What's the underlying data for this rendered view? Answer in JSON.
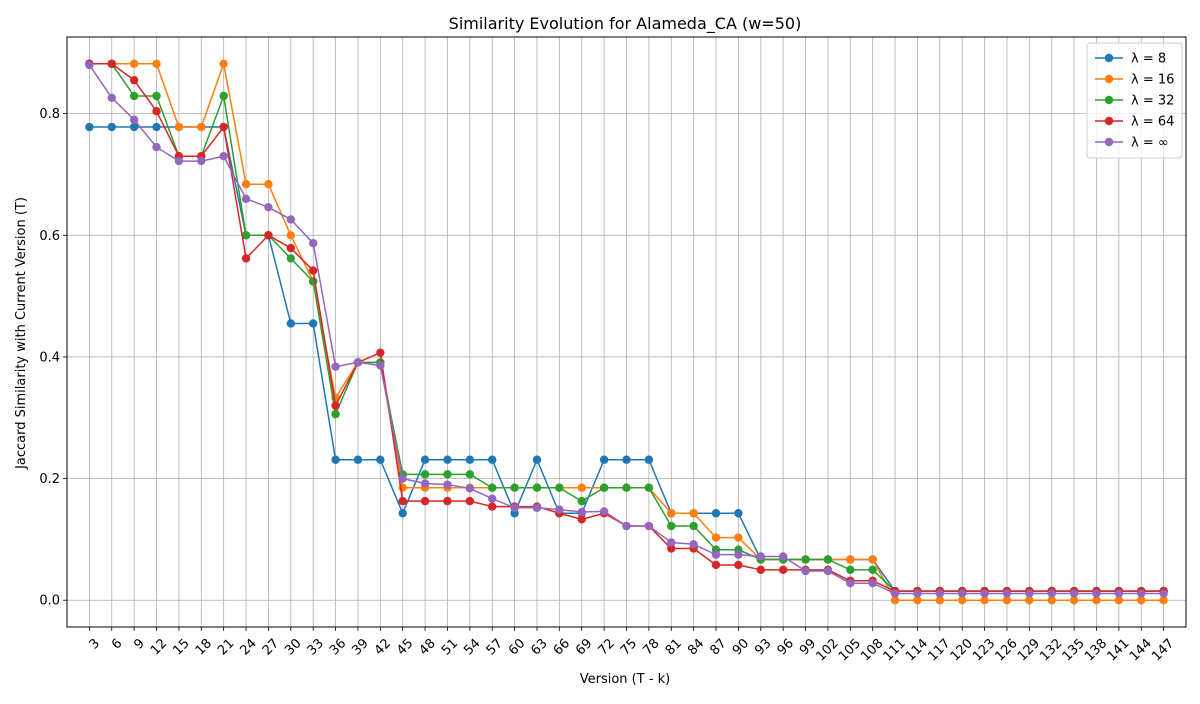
{
  "chart_data": {
    "type": "line",
    "title": "Similarity Evolution for Alameda_CA (w=50)",
    "xlabel": "Version (T - k)",
    "ylabel": "Jaccard Similarity with Current Version (T)",
    "grid": true,
    "legend_position": "top-right",
    "xlim": [
      0,
      150
    ],
    "ylim": [
      -0.044,
      0.926
    ],
    "x": [
      3,
      6,
      9,
      12,
      15,
      18,
      21,
      24,
      27,
      30,
      33,
      36,
      39,
      42,
      45,
      48,
      51,
      54,
      57,
      60,
      63,
      66,
      69,
      72,
      75,
      78,
      81,
      84,
      87,
      90,
      93,
      96,
      99,
      102,
      105,
      108,
      111,
      114,
      117,
      120,
      123,
      126,
      129,
      132,
      135,
      138,
      141,
      144,
      147
    ],
    "x_ticks": [
      3,
      6,
      9,
      12,
      15,
      18,
      21,
      24,
      27,
      30,
      33,
      36,
      39,
      42,
      45,
      48,
      51,
      54,
      57,
      60,
      63,
      66,
      69,
      72,
      75,
      78,
      81,
      84,
      87,
      90,
      93,
      96,
      99,
      102,
      105,
      108,
      111,
      114,
      117,
      120,
      123,
      126,
      129,
      132,
      135,
      138,
      141,
      144,
      147
    ],
    "y_ticks": [
      0.0,
      0.2,
      0.4,
      0.6,
      0.8
    ],
    "y_tick_labels": [
      "0.0",
      "0.2",
      "0.4",
      "0.6",
      "0.8"
    ],
    "series": [
      {
        "name": "λ = 8",
        "color": "#1f77b4",
        "values": [
          0.778,
          0.778,
          0.778,
          0.778,
          0.778,
          0.778,
          0.778,
          0.6,
          0.6,
          0.455,
          0.455,
          0.231,
          0.231,
          0.231,
          0.143,
          0.231,
          0.231,
          0.231,
          0.231,
          0.143,
          0.231,
          0.143,
          0.143,
          0.231,
          0.231,
          0.231,
          0.143,
          0.143,
          0.143,
          0.143,
          0.067,
          0.067,
          0.067,
          0.067,
          0.067,
          0.067,
          0.015,
          0.015,
          0.015,
          0.015,
          0.015,
          0.015,
          0.015,
          0.015,
          0.015,
          0.015,
          0.015,
          0.015,
          0.015
        ]
      },
      {
        "name": "λ = 16",
        "color": "#ff7f0e",
        "values": [
          0.882,
          0.882,
          0.882,
          0.882,
          0.778,
          0.778,
          0.882,
          0.684,
          0.684,
          0.6,
          0.524,
          0.333,
          0.391,
          0.391,
          0.185,
          0.185,
          0.185,
          0.185,
          0.185,
          0.185,
          0.185,
          0.185,
          0.185,
          0.185,
          0.185,
          0.185,
          0.143,
          0.143,
          0.103,
          0.103,
          0.067,
          0.067,
          0.067,
          0.067,
          0.067,
          0.067,
          0.0,
          0.0,
          0.0,
          0.0,
          0.0,
          0.0,
          0.0,
          0.0,
          0.0,
          0.0,
          0.0,
          0.0,
          0.0
        ]
      },
      {
        "name": "λ = 32",
        "color": "#2ca02c",
        "values": [
          0.882,
          0.882,
          0.829,
          0.829,
          0.73,
          0.73,
          0.829,
          0.6,
          0.6,
          0.562,
          0.524,
          0.306,
          0.391,
          0.391,
          0.207,
          0.207,
          0.207,
          0.207,
          0.185,
          0.185,
          0.185,
          0.185,
          0.163,
          0.185,
          0.185,
          0.185,
          0.122,
          0.122,
          0.083,
          0.083,
          0.067,
          0.067,
          0.067,
          0.067,
          0.05,
          0.05,
          0.015,
          0.015,
          0.015,
          0.015,
          0.015,
          0.015,
          0.015,
          0.015,
          0.015,
          0.015,
          0.015,
          0.015,
          0.015
        ]
      },
      {
        "name": "λ = 64",
        "color": "#d62728",
        "values": [
          0.882,
          0.882,
          0.855,
          0.804,
          0.73,
          0.73,
          0.778,
          0.562,
          0.6,
          0.579,
          0.542,
          0.32,
          0.391,
          0.407,
          0.163,
          0.163,
          0.163,
          0.163,
          0.154,
          0.154,
          0.154,
          0.143,
          0.133,
          0.143,
          0.122,
          0.122,
          0.085,
          0.085,
          0.058,
          0.058,
          0.05,
          0.05,
          0.05,
          0.05,
          0.032,
          0.032,
          0.015,
          0.015,
          0.015,
          0.015,
          0.015,
          0.015,
          0.015,
          0.015,
          0.015,
          0.015,
          0.015,
          0.015,
          0.015
        ]
      },
      {
        "name": "λ = ∞",
        "color": "#9467bd",
        "values": [
          0.88,
          0.826,
          0.79,
          0.745,
          0.722,
          0.722,
          0.73,
          0.66,
          0.646,
          0.626,
          0.587,
          0.384,
          0.391,
          0.386,
          0.2,
          0.192,
          0.19,
          0.184,
          0.167,
          0.152,
          0.152,
          0.149,
          0.145,
          0.146,
          0.122,
          0.122,
          0.095,
          0.092,
          0.075,
          0.075,
          0.072,
          0.072,
          0.048,
          0.048,
          0.028,
          0.028,
          0.011,
          0.011,
          0.011,
          0.011,
          0.011,
          0.011,
          0.011,
          0.011,
          0.011,
          0.011,
          0.011,
          0.011,
          0.011
        ]
      }
    ]
  }
}
